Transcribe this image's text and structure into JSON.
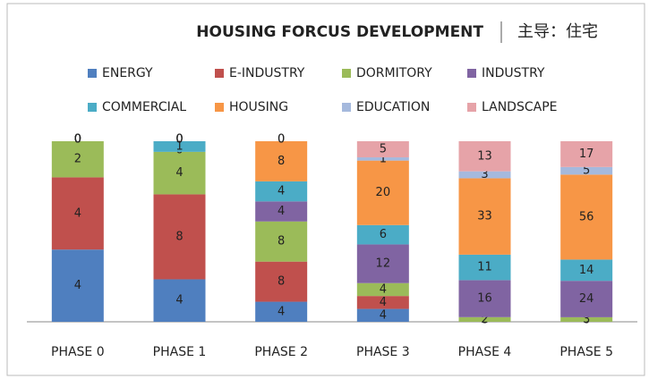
{
  "chart_data": {
    "type": "stacked_bar_100",
    "title": "HOUSING FORCUS DEVELOPMENT",
    "subtitle": "主导：住宅",
    "categories": [
      "PHASE 0",
      "PHASE 1",
      "PHASE 2",
      "PHASE 3",
      "PHASE 4",
      "PHASE 5"
    ],
    "series": [
      {
        "name": "ENERGY",
        "color": "#4f7fbf",
        "values": [
          4,
          4,
          4,
          4,
          0,
          0
        ]
      },
      {
        "name": "E-INDUSTRY",
        "color": "#c0504d",
        "values": [
          4,
          8,
          8,
          4,
          0,
          0
        ]
      },
      {
        "name": "DORMITORY",
        "color": "#9bbb59",
        "values": [
          2,
          4,
          8,
          4,
          2,
          3
        ]
      },
      {
        "name": "INDUSTRY",
        "color": "#8064a2",
        "values": [
          0,
          0,
          4,
          12,
          16,
          24
        ]
      },
      {
        "name": "COMMERCIAL",
        "color": "#4bacc6",
        "values": [
          0,
          1,
          4,
          6,
          11,
          14
        ]
      },
      {
        "name": "HOUSING",
        "color": "#f79646",
        "values": [
          0,
          0,
          8,
          20,
          33,
          56
        ]
      },
      {
        "name": "EDUCATION",
        "color": "#a5b9dd",
        "values": [
          0,
          0,
          0,
          1,
          3,
          5
        ]
      },
      {
        "name": "LANDSCAPE",
        "color": "#e6a3a8",
        "values": [
          0,
          0,
          0,
          5,
          13,
          17
        ]
      }
    ]
  }
}
